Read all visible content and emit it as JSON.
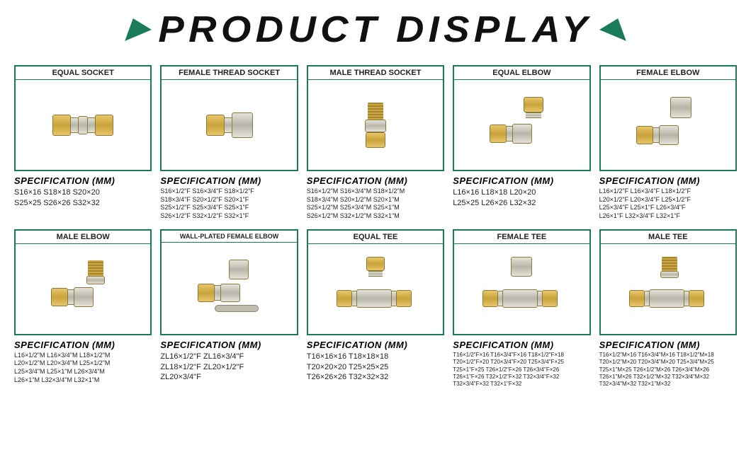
{
  "title": "PRODUCT DISPLAY",
  "accent_color": "#1a7a5a",
  "spec_heading": "SPECIFICATION (MM)",
  "products": [
    {
      "name": "EQUAL SOCKET",
      "spec_size": "normal",
      "specs": "S16×16 S18×18 S20×20\nS25×25 S26×26 S32×32"
    },
    {
      "name": "FEMALE THREAD SOCKET",
      "spec_size": "small",
      "specs": "S16×1/2\"F S16×3/4\"F S18×1/2\"F\nS18×3/4\"F S20×1/2\"F S20×1\"F\nS25×1/2\"F S25×3/4\"F S25×1\"F\nS26×1/2\"F S32×1/2\"F S32×1\"F"
    },
    {
      "name": "MALE THREAD SOCKET",
      "spec_size": "small",
      "specs": "S16×1/2\"M S16×3/4\"M S18×1/2\"M\nS18×3/4\"M S20×1/2\"M S20×1\"M\nS25×1/2\"M S25×3/4\"M S25×1\"M\nS26×1/2\"M S32×1/2\"M S32×1\"M"
    },
    {
      "name": "EQUAL ELBOW",
      "spec_size": "normal",
      "specs": "L16×16 L18×18 L20×20\nL25×25 L26×26 L32×32"
    },
    {
      "name": "FEMALE ELBOW",
      "spec_size": "small",
      "specs": "L16×1/2\"F L16×3/4\"F L18×1/2\"F\nL20×1/2\"F L20×3/4\"F L25×1/2\"F\nL25×3/4\"F L25×1\"F L26×3/4\"F\nL26×1\"F L32×3/4\"F L32×1\"F"
    },
    {
      "name": "MALE ELBOW",
      "spec_size": "small",
      "specs": "L16×1/2\"M L16×3/4\"M L18×1/2\"M\nL20×1/2\"M L20×3/4\"M L25×1/2\"M\nL25×3/4\"M L25×1\"M L26×3/4\"M\nL26×1\"M L32×3/4\"M L32×1\"M"
    },
    {
      "name": "WALL-PLATED FEMALE ELBOW",
      "spec_size": "normal",
      "specs": "ZL16×1/2\"F ZL16×3/4\"F\nZL18×1/2\"F ZL20×1/2\"F\nZL20×3/4\"F"
    },
    {
      "name": "EQUAL TEE",
      "spec_size": "normal",
      "specs": "T16×16×16 T18×18×18\nT20×20×20 T25×25×25\nT26×26×26 T32×32×32"
    },
    {
      "name": "FEMALE TEE",
      "spec_size": "tiny",
      "specs": "T16×1/2\"F×16 T16×3/4\"F×16 T18×1/2\"F×18\nT20×1/2\"F×20 T20×3/4\"F×20 T25×3/4\"F×25\nT25×1\"F×25 T26×1/2\"F×26 T26×3/4\"F×26\nT26×1\"F×26 T32×1/2\"F×32 T32×3/4\"F×32\nT32×3/4\"F×32 T32×1\"F×32"
    },
    {
      "name": "MALE TEE",
      "spec_size": "tiny",
      "specs": "T16×1/2\"M×16 T16×3/4\"M×16 T18×1/2\"M×18\nT20×1/2\"M×20 T20×3/4\"M×20 T25×3/4\"M×25\nT25×1\"M×25 T26×1/2\"M×26 T26×3/4\"M×26\nT26×1\"M×26 T32×1/2\"M×32 T32×3/4\"M×32\nT32×3/4\"M×32 T32×1\"M×32"
    }
  ]
}
